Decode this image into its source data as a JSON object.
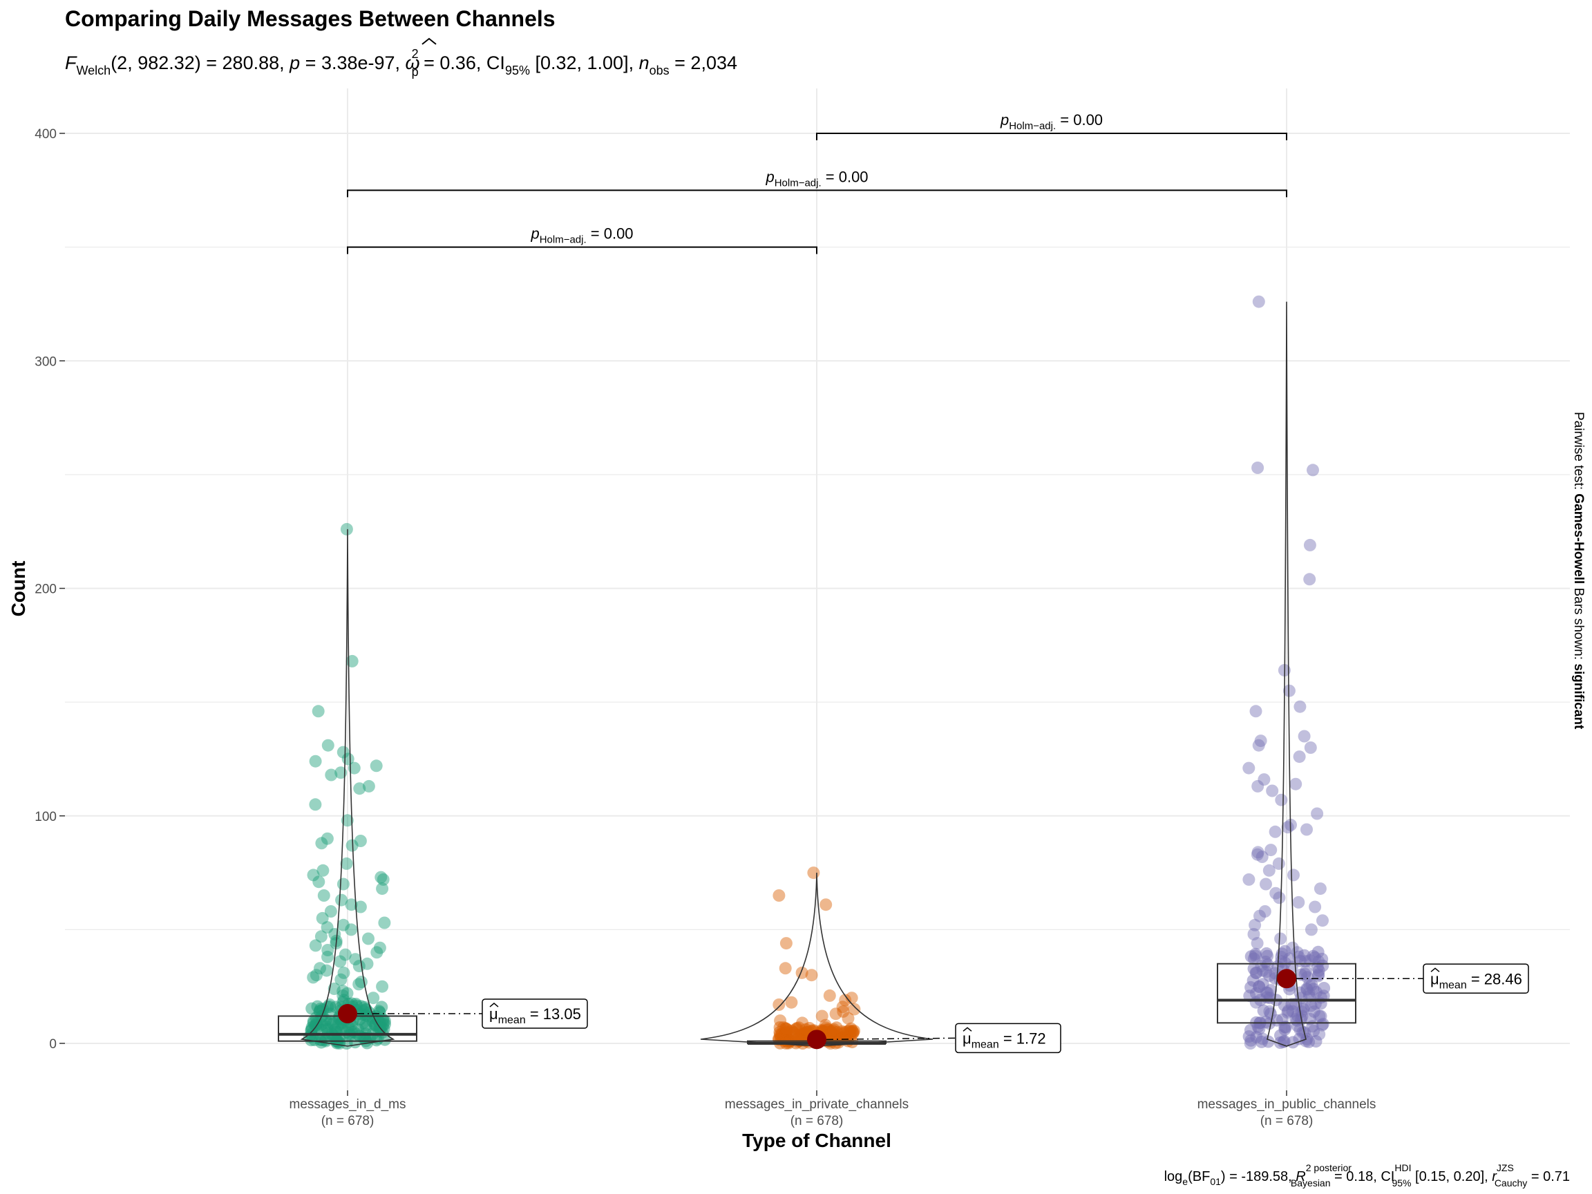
{
  "chart_data": {
    "type": "violin-box-scatter",
    "title": "Comparing Daily Messages Between Channels",
    "subtitle": {
      "welch_label": "F",
      "welch_sub": "Welch",
      "test_stat": "(2, 982.32) = 280.88, ",
      "p_label": "p",
      "p_value": " = 3.38e-97, ",
      "effect_symbol": "ω",
      "effect_sup": "2",
      "effect_sub": "p",
      "effect_value": " = 0.36, CI",
      "ci_sub": "95%",
      "ci_value": " [0.32, 1.00], ",
      "n_label": "n",
      "n_sub": "obs",
      "n_value": " = 2,034"
    },
    "xlabel": "Type of Channel",
    "ylabel": "Count",
    "ylim": [
      -20,
      400
    ],
    "y_ticks": [
      0,
      100,
      200,
      300,
      400
    ],
    "categories": [
      "messages_in_d_ms",
      "messages_in_private_channels",
      "messages_in_public_channels"
    ],
    "n_labels": [
      "(n = 678)",
      "(n = 678)",
      "(n = 678)"
    ],
    "colors": [
      "#1b9e77",
      "#d95f02",
      "#7570b3"
    ],
    "mean_color": "#8b0000",
    "series": [
      {
        "name": "messages_in_d_ms",
        "mean": 13.05,
        "mean_label": "13.05",
        "box": {
          "q1": 1,
          "median": 4,
          "q3": 12,
          "lower": 0,
          "upper": 226
        },
        "points": [
          226,
          168,
          146,
          131,
          128,
          125,
          124,
          122,
          121,
          119,
          118,
          113,
          112,
          105,
          98,
          90,
          89,
          88,
          87,
          79,
          76,
          74,
          73,
          72,
          71,
          70,
          68,
          65,
          63,
          61,
          60,
          58,
          55,
          53,
          52,
          51,
          50,
          48,
          47,
          46,
          45,
          44,
          43,
          42,
          41,
          40,
          39,
          38,
          37,
          36,
          35,
          34,
          33,
          32,
          31,
          30,
          29,
          28,
          27,
          26,
          25,
          24,
          23,
          22,
          21,
          20,
          19,
          18,
          17,
          16,
          15,
          14,
          13,
          12,
          11,
          10,
          9,
          8,
          7,
          6,
          5,
          4,
          3,
          2,
          1,
          0
        ]
      },
      {
        "name": "messages_in_private_channels",
        "mean": 1.72,
        "mean_label": "1.72",
        "box": {
          "q1": 0,
          "median": 0,
          "q3": 1,
          "lower": 0,
          "upper": 75
        },
        "points": [
          75,
          65,
          61,
          44,
          33,
          31,
          30,
          21,
          20,
          19,
          18,
          17,
          16,
          15,
          14,
          13,
          12,
          11,
          10,
          9,
          8,
          7,
          6,
          5,
          4,
          3,
          2,
          1,
          0
        ]
      },
      {
        "name": "messages_in_public_channels",
        "mean": 28.46,
        "mean_label": "28.46",
        "box": {
          "q1": 9,
          "median": 19,
          "q3": 35,
          "lower": 0,
          "upper": 326
        },
        "points": [
          326,
          253,
          252,
          219,
          204,
          164,
          155,
          148,
          146,
          135,
          133,
          131,
          130,
          126,
          121,
          116,
          114,
          113,
          111,
          107,
          101,
          96,
          95,
          94,
          93,
          85,
          84,
          83,
          82,
          79,
          76,
          74,
          72,
          70,
          68,
          66,
          64,
          62,
          60,
          58,
          56,
          54,
          52,
          50,
          48,
          46,
          44,
          42,
          40,
          38,
          36,
          34,
          32,
          30,
          28,
          26,
          24,
          22,
          20,
          18,
          16,
          14,
          12,
          10,
          8,
          6,
          4,
          2,
          1,
          0
        ]
      }
    ],
    "mean_label_prefix": "μ",
    "mean_label_sub": "mean",
    "mean_label_eq": " = ",
    "pairwise": [
      {
        "from": 0,
        "to": 1,
        "y": 350,
        "label_p": "p",
        "label_sub": "Holm−adj.",
        "label_value": " = 0.00"
      },
      {
        "from": 0,
        "to": 2,
        "y": 375,
        "label_p": "p",
        "label_sub": "Holm−adj.",
        "label_value": " = 0.00"
      },
      {
        "from": 1,
        "to": 2,
        "y": 400,
        "label_p": "p",
        "label_sub": "Holm−adj.",
        "label_value": " = 0.00"
      }
    ],
    "side_label": {
      "prefix": "Pairwise test: ",
      "test": "Games-Howell",
      "middle": " Bars shown: ",
      "shown": "significant"
    },
    "caption": {
      "log_label": "log",
      "log_sub": "e",
      "bf_label": "(BF",
      "bf_sub": "01",
      "bf_value": ") = -189.58, ",
      "r2_label": "R",
      "r2_sup": "2 posterior",
      "r2_sub": "Bayesian",
      "r2_value": " = 0.18, CI",
      "ci_sup": "HDI",
      "ci_sub": "95%",
      "ci_value": " [0.15, 0.20], ",
      "r_label": "r",
      "r_sup": "JZS",
      "r_sub": "Cauchy",
      "r_value": " = 0.71"
    }
  }
}
